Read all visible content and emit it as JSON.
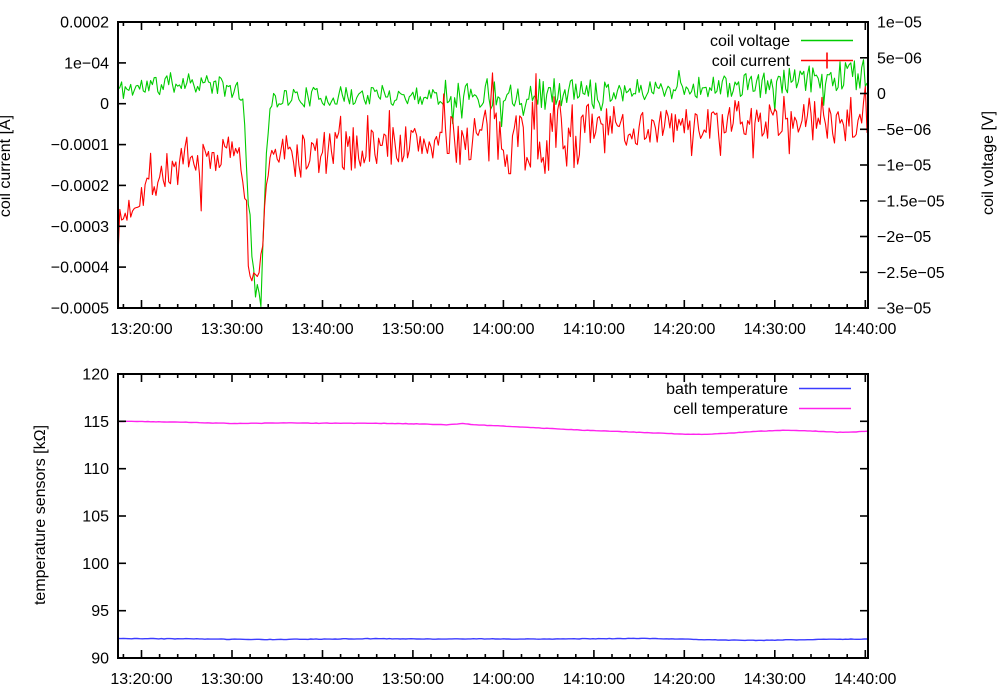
{
  "figure": {
    "background": "#ffffff",
    "border_color": "#000000",
    "text_color": "#000000"
  },
  "chart_data": [
    {
      "type": "line",
      "panel": "top",
      "title": "",
      "grid": false,
      "x_axis": {
        "tick_labels": [
          "13:20:00",
          "13:30:00",
          "13:40:00",
          "13:50:00",
          "14:00:00",
          "14:10:00",
          "14:20:00",
          "14:30:00",
          "14:40:00"
        ],
        "tick_minutes": [
          0,
          10,
          20,
          30,
          40,
          50,
          60,
          70,
          80
        ],
        "minor_tick_step_minutes": 2,
        "range_minutes": [
          -2.6,
          80.3
        ]
      },
      "y_axis_left": {
        "label": "coil current [A]",
        "tick_labels": [
          "0.0002",
          "1e−04",
          "0",
          "−0.0001",
          "−0.0002",
          "−0.0003",
          "−0.0004",
          "−0.0005"
        ],
        "tick_values": [
          0.0002,
          0.0001,
          0,
          -0.0001,
          -0.0002,
          -0.0003,
          -0.0004,
          -0.0005
        ],
        "range": [
          0.0002,
          -0.0005
        ]
      },
      "y_axis_right": {
        "label": "coil voltage [V]",
        "tick_labels": [
          "1e−05",
          "5e−06",
          "0",
          "−5e−06",
          "−1e−05",
          "−1.5e−05",
          "−2e−05",
          "−2.5e−05",
          "−3e−05"
        ],
        "tick_values": [
          1e-05,
          5e-06,
          0,
          -5e-06,
          -1e-05,
          -1.5e-05,
          -2e-05,
          -2.5e-05,
          -3e-05
        ],
        "range": [
          1e-05,
          -3e-05
        ]
      },
      "legend": {
        "position": "top-right"
      },
      "series": [
        {
          "name": "coil voltage",
          "color": "#00cc00",
          "axis": "right",
          "seed": 11,
          "sample_step_minutes": 0.2,
          "spike_prob": 0.05,
          "spike_scale": 2.5,
          "legend_marker": "line",
          "keyframes": {
            "t": [
              -2.6,
              2,
              5,
              8,
              10.5,
              11.3,
              12.3,
              13.2,
              13.8,
              14.5,
              20,
              26,
              32,
              37,
              40,
              44,
              48,
              54,
              60,
              66,
              72,
              76,
              78.5,
              80.3
            ],
            "v": [
              5e-07,
              1.2e-06,
              1.8e-06,
              1.2e-06,
              3e-07,
              -2e-06,
              -2.6e-05,
              -2.8e-05,
              -8e-06,
              -5e-07,
              -5e-07,
              -3e-07,
              -3e-07,
              0,
              0,
              0,
              2e-07,
              5e-07,
              8e-07,
              1e-06,
              1.5e-06,
              2.2e-06,
              2.8e-06,
              3e-06
            ],
            "amp": [
              1.5e-06,
              1.6e-06,
              1.4e-06,
              1.5e-06,
              1.2e-06,
              1.5e-06,
              2e-06,
              2e-06,
              2e-06,
              1.4e-06,
              1.4e-06,
              1.4e-06,
              1.4e-06,
              2.2e-06,
              2.3e-06,
              2.3e-06,
              1.9e-06,
              1.5e-06,
              1.5e-06,
              1.7e-06,
              1.9e-06,
              2.3e-06,
              2.5e-06,
              2.2e-06
            ]
          }
        },
        {
          "name": "coil current",
          "color": "#ff0000",
          "axis": "left",
          "seed": 7,
          "sample_step_minutes": 0.2,
          "spike_prob": 0.07,
          "spike_scale": 2.2,
          "legend_marker": "vertical-tick",
          "keyframes": {
            "t": [
              -2.6,
              0,
              3,
              6,
              9,
              10.8,
              11.3,
              11.9,
              12.9,
              13.5,
              14.2,
              16,
              20,
              24,
              28,
              32,
              36,
              38,
              42,
              46,
              50,
              53,
              58,
              63,
              68,
              72,
              75,
              78,
              80.3
            ],
            "v": [
              -0.0003,
              -0.00021,
              -0.00016,
              -0.000155,
              -0.00012,
              -0.000105,
              -0.00017,
              -0.00042,
              -0.00044,
              -0.0003,
              -0.00011,
              -0.00013,
              -0.000125,
              -0.00011,
              -0.0001,
              -9.5e-05,
              -8.5e-05,
              -8e-05,
              -8e-05,
              -7.5e-05,
              -7e-05,
              -6e-05,
              -5.5e-05,
              -5e-05,
              -4.5e-05,
              -4e-05,
              -3.5e-05,
              -3e-05,
              -1.5e-05
            ],
            "amp": [
              3.5e-05,
              5e-05,
              5e-05,
              5.5e-05,
              4.5e-05,
              2e-05,
              2.5e-05,
              3e-05,
              2.5e-05,
              3e-05,
              4.5e-05,
              6e-05,
              6e-05,
              5.5e-05,
              5e-05,
              5e-05,
              6.5e-05,
              8.5e-05,
              9.5e-05,
              9.5e-05,
              7.5e-05,
              5e-05,
              4.5e-05,
              4e-05,
              4e-05,
              4.5e-05,
              5.5e-05,
              8e-05,
              7.5e-05
            ]
          }
        }
      ]
    },
    {
      "type": "line",
      "panel": "bottom",
      "title": "",
      "grid": false,
      "x_axis": {
        "tick_labels": [
          "13:20:00",
          "13:30:00",
          "13:40:00",
          "13:50:00",
          "14:00:00",
          "14:10:00",
          "14:20:00",
          "14:30:00",
          "14:40:00"
        ],
        "tick_minutes": [
          0,
          10,
          20,
          30,
          40,
          50,
          60,
          70,
          80
        ],
        "minor_tick_step_minutes": 2,
        "range_minutes": [
          -2.6,
          80.3
        ]
      },
      "y_axis_left": {
        "label": "temperature sensors [kΩ]",
        "tick_labels": [
          "120",
          "115",
          "110",
          "105",
          "100",
          "95",
          "90"
        ],
        "tick_values": [
          120,
          115,
          110,
          105,
          100,
          95,
          90
        ],
        "range": [
          120,
          90
        ]
      },
      "legend": {
        "position": "top-right"
      },
      "series": [
        {
          "name": "bath temperature",
          "color": "#3b3bff",
          "axis": "left",
          "seed": 3,
          "sample_step_minutes": 0.3,
          "spike_prob": 0,
          "spike_scale": 1,
          "legend_marker": "line",
          "keyframes": {
            "t": [
              -2.6,
              5,
              10,
              14,
              20,
              26,
              32,
              38,
              44,
              50,
              55,
              60,
              64,
              68,
              72,
              76,
              80.3
            ],
            "v": [
              92.05,
              92.03,
              91.97,
              91.95,
              92.0,
              92.04,
              92.0,
              92.02,
              92.0,
              92.04,
              92.07,
              92.0,
              91.9,
              91.86,
              91.92,
              91.97,
              92.0
            ],
            "amp": [
              0.025,
              0.025,
              0.025,
              0.025,
              0.025,
              0.025,
              0.025,
              0.025,
              0.025,
              0.025,
              0.025,
              0.025,
              0.025,
              0.025,
              0.025,
              0.025,
              0.025
            ]
          }
        },
        {
          "name": "cell temperature",
          "color": "#ff22ee",
          "axis": "left",
          "seed": 5,
          "sample_step_minutes": 0.3,
          "spike_prob": 0,
          "spike_scale": 1,
          "legend_marker": "line",
          "keyframes": {
            "t": [
              -2.6,
              0,
              5,
              10,
              13,
              16,
              20,
              25,
              30,
              34,
              35.5,
              37,
              40,
              44,
              48,
              52,
              56,
              60,
              62,
              65,
              68,
              71,
              74,
              77,
              79,
              80.3
            ],
            "v": [
              115.0,
              114.98,
              114.9,
              114.77,
              114.8,
              114.84,
              114.8,
              114.8,
              114.74,
              114.64,
              114.78,
              114.62,
              114.5,
              114.3,
              114.1,
              113.95,
              113.8,
              113.65,
              113.62,
              113.75,
              113.95,
              114.05,
              113.98,
              113.85,
              113.88,
              113.98
            ],
            "amp": [
              0.02,
              0.02,
              0.02,
              0.02,
              0.02,
              0.02,
              0.02,
              0.02,
              0.02,
              0.02,
              0.02,
              0.02,
              0.02,
              0.02,
              0.02,
              0.02,
              0.02,
              0.02,
              0.02,
              0.02,
              0.02,
              0.02,
              0.02,
              0.02,
              0.02,
              0.02
            ]
          }
        }
      ]
    }
  ]
}
